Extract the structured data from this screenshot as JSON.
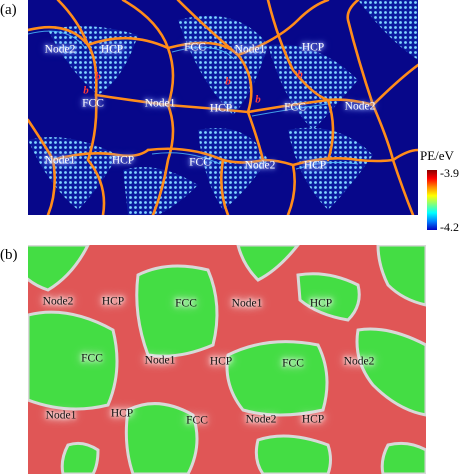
{
  "panel_a": {
    "label": "(a)",
    "colorbar": {
      "title": "PE/eV",
      "max": "-3.9",
      "min": "-4.2"
    },
    "labels": [
      {
        "text": "Node2",
        "key": "node2-a1"
      },
      {
        "text": "HCP",
        "key": "hcp-a1"
      },
      {
        "text": "FCC",
        "key": "fcc-a1"
      },
      {
        "text": "Node1",
        "key": "node1-a1"
      },
      {
        "text": "HCP",
        "key": "hcp-a2"
      },
      {
        "text": "FCC",
        "key": "fcc-a2"
      },
      {
        "text": "Node1",
        "key": "node1-a2"
      },
      {
        "text": "HCP",
        "key": "hcp-a3"
      },
      {
        "text": "FCC",
        "key": "fcc-a3"
      },
      {
        "text": "Node2",
        "key": "node2-a2"
      },
      {
        "text": "Node1",
        "key": "node1-a3"
      },
      {
        "text": "HCP",
        "key": "hcp-a4"
      },
      {
        "text": "FCC",
        "key": "fcc-a4"
      },
      {
        "text": "Node2",
        "key": "node2-a3"
      },
      {
        "text": "HCP",
        "key": "hcp-a5"
      }
    ],
    "burgers": [
      "b",
      "b",
      "b",
      "b",
      "b"
    ]
  },
  "panel_b": {
    "label": "(b)",
    "labels": [
      {
        "text": "Node2",
        "key": "node2-b1"
      },
      {
        "text": "HCP",
        "key": "hcp-b1"
      },
      {
        "text": "FCC",
        "key": "fcc-b1"
      },
      {
        "text": "Node1",
        "key": "node1-b1"
      },
      {
        "text": "HCP",
        "key": "hcp-b2"
      },
      {
        "text": "FCC",
        "key": "fcc-b2"
      },
      {
        "text": "Node1",
        "key": "node1-b2"
      },
      {
        "text": "HCP",
        "key": "hcp-b3"
      },
      {
        "text": "FCC",
        "key": "fcc-b3"
      },
      {
        "text": "Node2",
        "key": "node2-b2"
      },
      {
        "text": "Node1",
        "key": "node1-b3"
      },
      {
        "text": "HCP",
        "key": "hcp-b4"
      },
      {
        "text": "FCC",
        "key": "fcc-b4"
      },
      {
        "text": "Node2",
        "key": "node2-b3"
      },
      {
        "text": "HCP",
        "key": "hcp-b5"
      }
    ]
  },
  "colors": {
    "background_a": "#0a0a8a",
    "dislocation": "#ff8c1a",
    "stacking_fault": "#6fd0ff",
    "fcc_green": "#44dd44",
    "hcp_red": "#e05656",
    "boundary": "#d8d8d8"
  }
}
